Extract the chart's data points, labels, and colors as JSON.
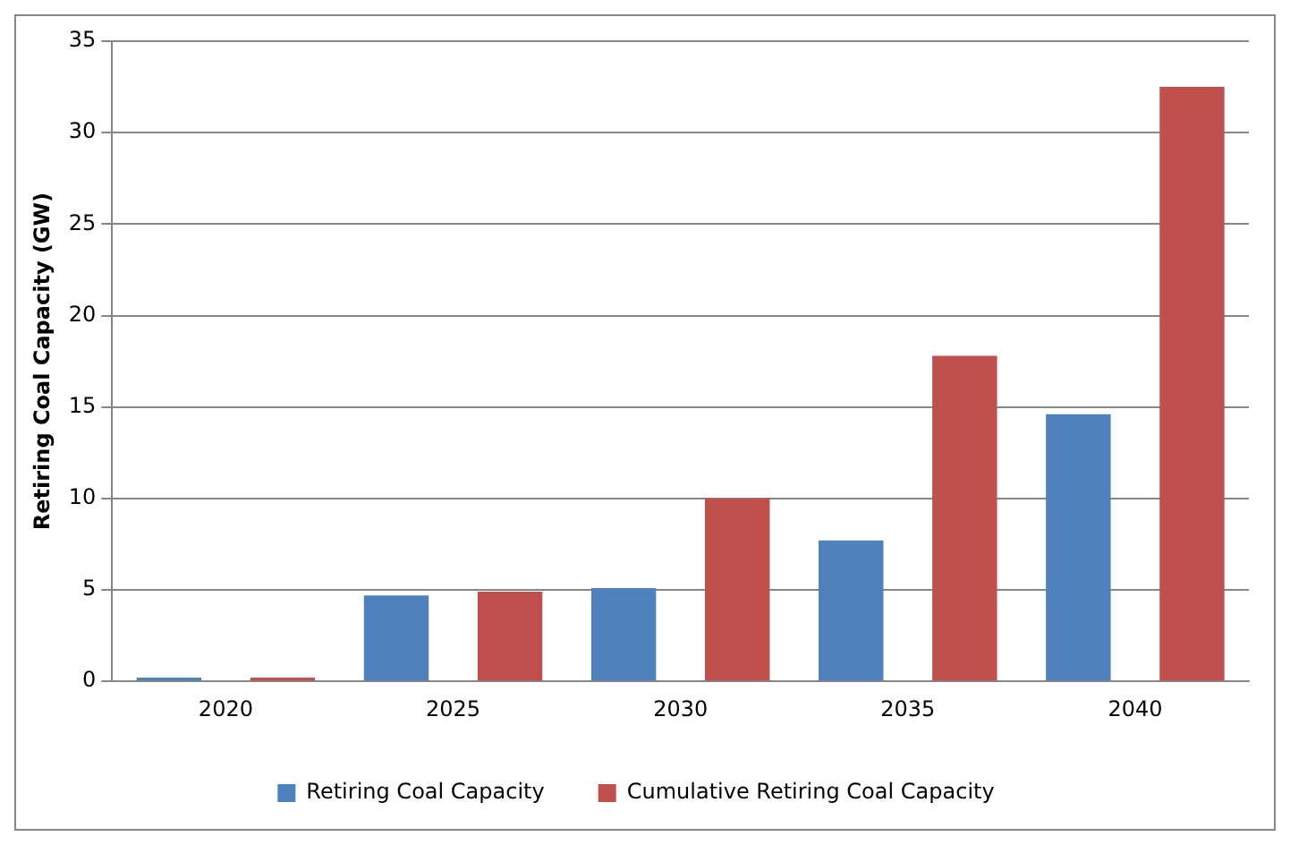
{
  "chart_data": {
    "type": "bar",
    "ylabel": "Retiring Coal Capacity (GW)",
    "categories": [
      "2020",
      "2025",
      "2030",
      "2035",
      "2040"
    ],
    "series": [
      {
        "name": "Retiring Coal Capacity",
        "color": "#4f81bd",
        "values": [
          0.2,
          4.7,
          5.1,
          7.7,
          14.6
        ]
      },
      {
        "name": "Cumulative Retiring Coal Capacity",
        "color": "#c0504d",
        "values": [
          0.2,
          4.9,
          10.0,
          17.8,
          32.5
        ]
      }
    ],
    "ylim": [
      0,
      35
    ],
    "yticks": [
      0,
      5,
      10,
      15,
      20,
      25,
      30,
      35
    ],
    "grid": "y",
    "legend": "bottom"
  }
}
